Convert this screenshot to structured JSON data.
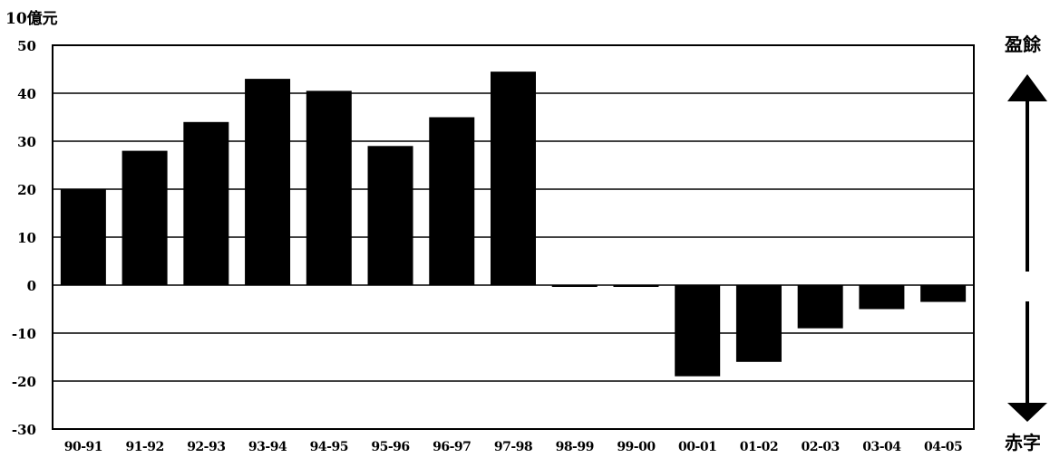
{
  "chart_data": {
    "type": "bar",
    "unit_label": "10億元",
    "surplus_label": "盈餘",
    "deficit_label": "赤字",
    "categories": [
      "90-91",
      "91-92",
      "92-93",
      "93-94",
      "94-95",
      "95-96",
      "96-97",
      "97-98",
      "98-99",
      "99-00",
      "00-01",
      "01-02",
      "02-03",
      "03-04",
      "04-05"
    ],
    "values": [
      20,
      28,
      34,
      43,
      40.5,
      29,
      35,
      44.5,
      -0.3,
      -0.3,
      -19,
      -16,
      -9,
      -5,
      -3.5
    ],
    "ylim": [
      -30,
      50
    ],
    "yticks": [
      50,
      40,
      30,
      20,
      10,
      0,
      -10,
      -20,
      -30
    ],
    "grid": true,
    "bar_color": "#000000"
  }
}
